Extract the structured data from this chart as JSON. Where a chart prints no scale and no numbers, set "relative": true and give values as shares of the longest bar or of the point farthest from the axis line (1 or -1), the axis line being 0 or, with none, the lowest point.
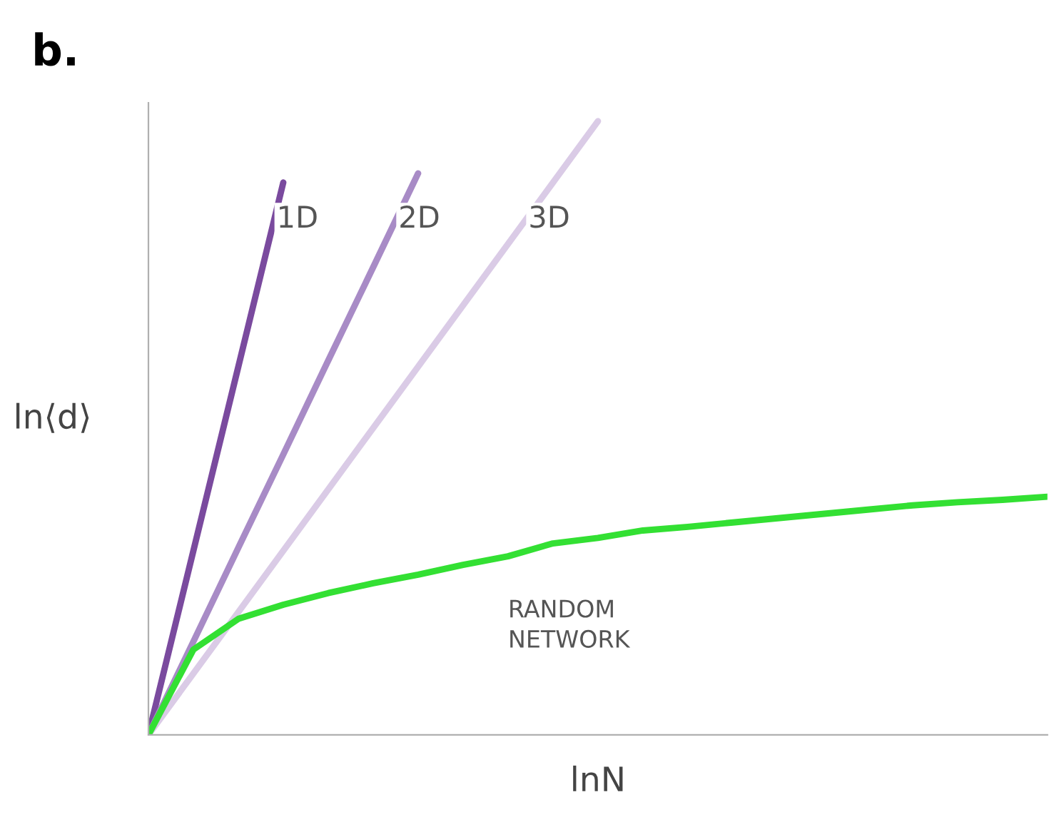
{
  "chart_data": {
    "type": "line",
    "title": "b.",
    "xlabel": "lnN",
    "ylabel": "ln⟨d⟩",
    "relative": true,
    "grid": false,
    "legend": false,
    "categories": [
      null,
      null,
      null,
      null,
      null,
      null,
      null,
      null,
      null,
      null,
      null,
      null,
      null,
      null,
      null,
      null,
      null,
      null,
      null,
      null,
      null
    ],
    "series": [
      {
        "name": "1D",
        "color": "#7a4a9e",
        "values": [
          0,
          0.3,
          0.6,
          0.9,
          null,
          null,
          null,
          null,
          null,
          null,
          null,
          null,
          null,
          null,
          null,
          null,
          null,
          null,
          null,
          null,
          null
        ]
      },
      {
        "name": "2D",
        "color": "#a88bc6",
        "values": [
          0,
          0.152,
          0.305,
          0.457,
          0.61,
          0.762,
          0.915,
          null,
          null,
          null,
          null,
          null,
          null,
          null,
          null,
          null,
          null,
          null,
          null,
          null,
          null
        ]
      },
      {
        "name": "3D",
        "color": "#dacbe6",
        "values": [
          0,
          0.1,
          0.2,
          0.3,
          0.4,
          0.5,
          0.6,
          0.7,
          0.8,
          0.9,
          1.0,
          null,
          null,
          null,
          null,
          null,
          null,
          null,
          null,
          null,
          null
        ]
      },
      {
        "name": "RANDOM\nNETWORK",
        "color": "#33e033",
        "values": [
          0,
          0.139,
          0.189,
          0.212,
          0.231,
          0.247,
          0.261,
          0.277,
          0.291,
          0.312,
          0.321,
          0.333,
          0.339,
          0.346,
          0.353,
          0.36,
          0.367,
          0.374,
          0.379,
          0.383,
          0.388
        ]
      }
    ]
  }
}
